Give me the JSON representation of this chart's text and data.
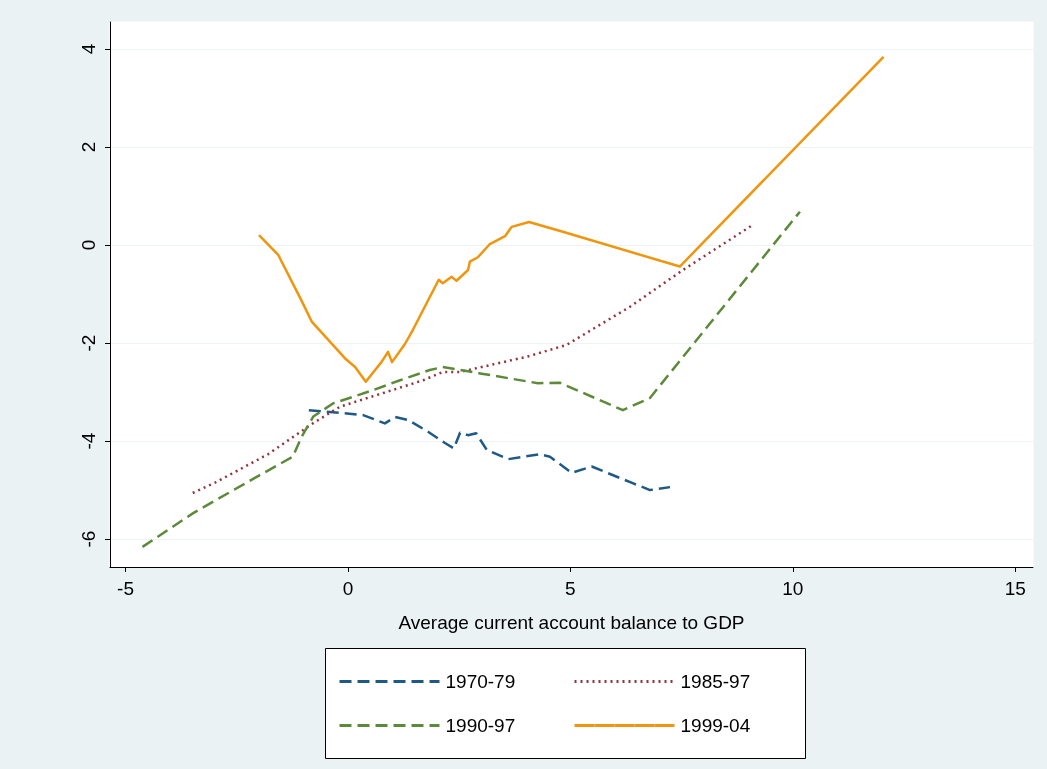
{
  "chart_data": {
    "type": "line",
    "xlabel": "Average current account balance to GDP",
    "xlim": [
      -5.35,
      15.4
    ],
    "ylim": [
      -6.57,
      4.55
    ],
    "xticks": [
      -5,
      0,
      5,
      10,
      15
    ],
    "yticks": [
      -6,
      -4,
      -2,
      0,
      2,
      4
    ],
    "grid": "y",
    "legend": "bottom",
    "marker": "none",
    "series": [
      {
        "name": "1970-79",
        "color": "#1f5a87",
        "line_style": "dashed",
        "x": [
          -0.88,
          -0.11,
          0.34,
          0.83,
          1.06,
          1.35,
          1.8,
          2.18,
          2.38,
          2.52,
          2.7,
          2.88,
          3.12,
          3.6,
          4.31,
          4.54,
          5.03,
          5.48,
          6.4,
          6.79,
          7.24
        ],
        "values": [
          -3.37,
          -3.43,
          -3.47,
          -3.64,
          -3.51,
          -3.57,
          -3.81,
          -4.04,
          -4.15,
          -3.83,
          -3.88,
          -3.84,
          -4.18,
          -4.37,
          -4.27,
          -4.32,
          -4.65,
          -4.52,
          -4.86,
          -5.0,
          -4.94
        ]
      },
      {
        "name": "1985-97",
        "color": "#90353b",
        "line_style": "dotted",
        "x": [
          -3.49,
          -2.99,
          -1.8,
          -0.79,
          -0.18,
          1.69,
          2.13,
          2.52,
          4.02,
          4.91,
          6.34,
          7.53,
          9.1
        ],
        "values": [
          -5.06,
          -4.85,
          -4.27,
          -3.64,
          -3.3,
          -2.76,
          -2.59,
          -2.59,
          -2.28,
          -2.04,
          -1.26,
          -0.51,
          0.41
        ]
      },
      {
        "name": "1990-97",
        "color": "#5d8a3a",
        "line_style": "dashed",
        "x": [
          -4.62,
          -3.48,
          -2.05,
          -1.24,
          -1.04,
          -0.78,
          -0.33,
          0.57,
          1.17,
          1.84,
          2.13,
          2.97,
          4.27,
          4.76,
          6.18,
          6.79,
          10.16
        ],
        "values": [
          -6.16,
          -5.47,
          -4.73,
          -4.32,
          -3.91,
          -3.5,
          -3.23,
          -2.96,
          -2.76,
          -2.55,
          -2.49,
          -2.62,
          -2.82,
          -2.81,
          -3.37,
          -3.12,
          0.68
        ]
      },
      {
        "name": "1999-04",
        "color": "#f0950e",
        "line_style": "solid",
        "x": [
          -2.0,
          -1.57,
          -1.03,
          -0.81,
          -0.07,
          0.16,
          0.4,
          0.76,
          0.9,
          0.99,
          1.28,
          1.46,
          2.04,
          2.13,
          2.33,
          2.44,
          2.7,
          2.74,
          2.92,
          3.19,
          3.53,
          3.68,
          4.07,
          4.83,
          7.46,
          12.04
        ],
        "values": [
          0.2,
          -0.2,
          -1.16,
          -1.57,
          -2.31,
          -2.49,
          -2.79,
          -2.38,
          -2.18,
          -2.39,
          -2.02,
          -1.73,
          -0.71,
          -0.78,
          -0.65,
          -0.73,
          -0.51,
          -0.34,
          -0.25,
          0.02,
          0.18,
          0.37,
          0.47,
          0.27,
          -0.44,
          3.84
        ]
      }
    ]
  }
}
